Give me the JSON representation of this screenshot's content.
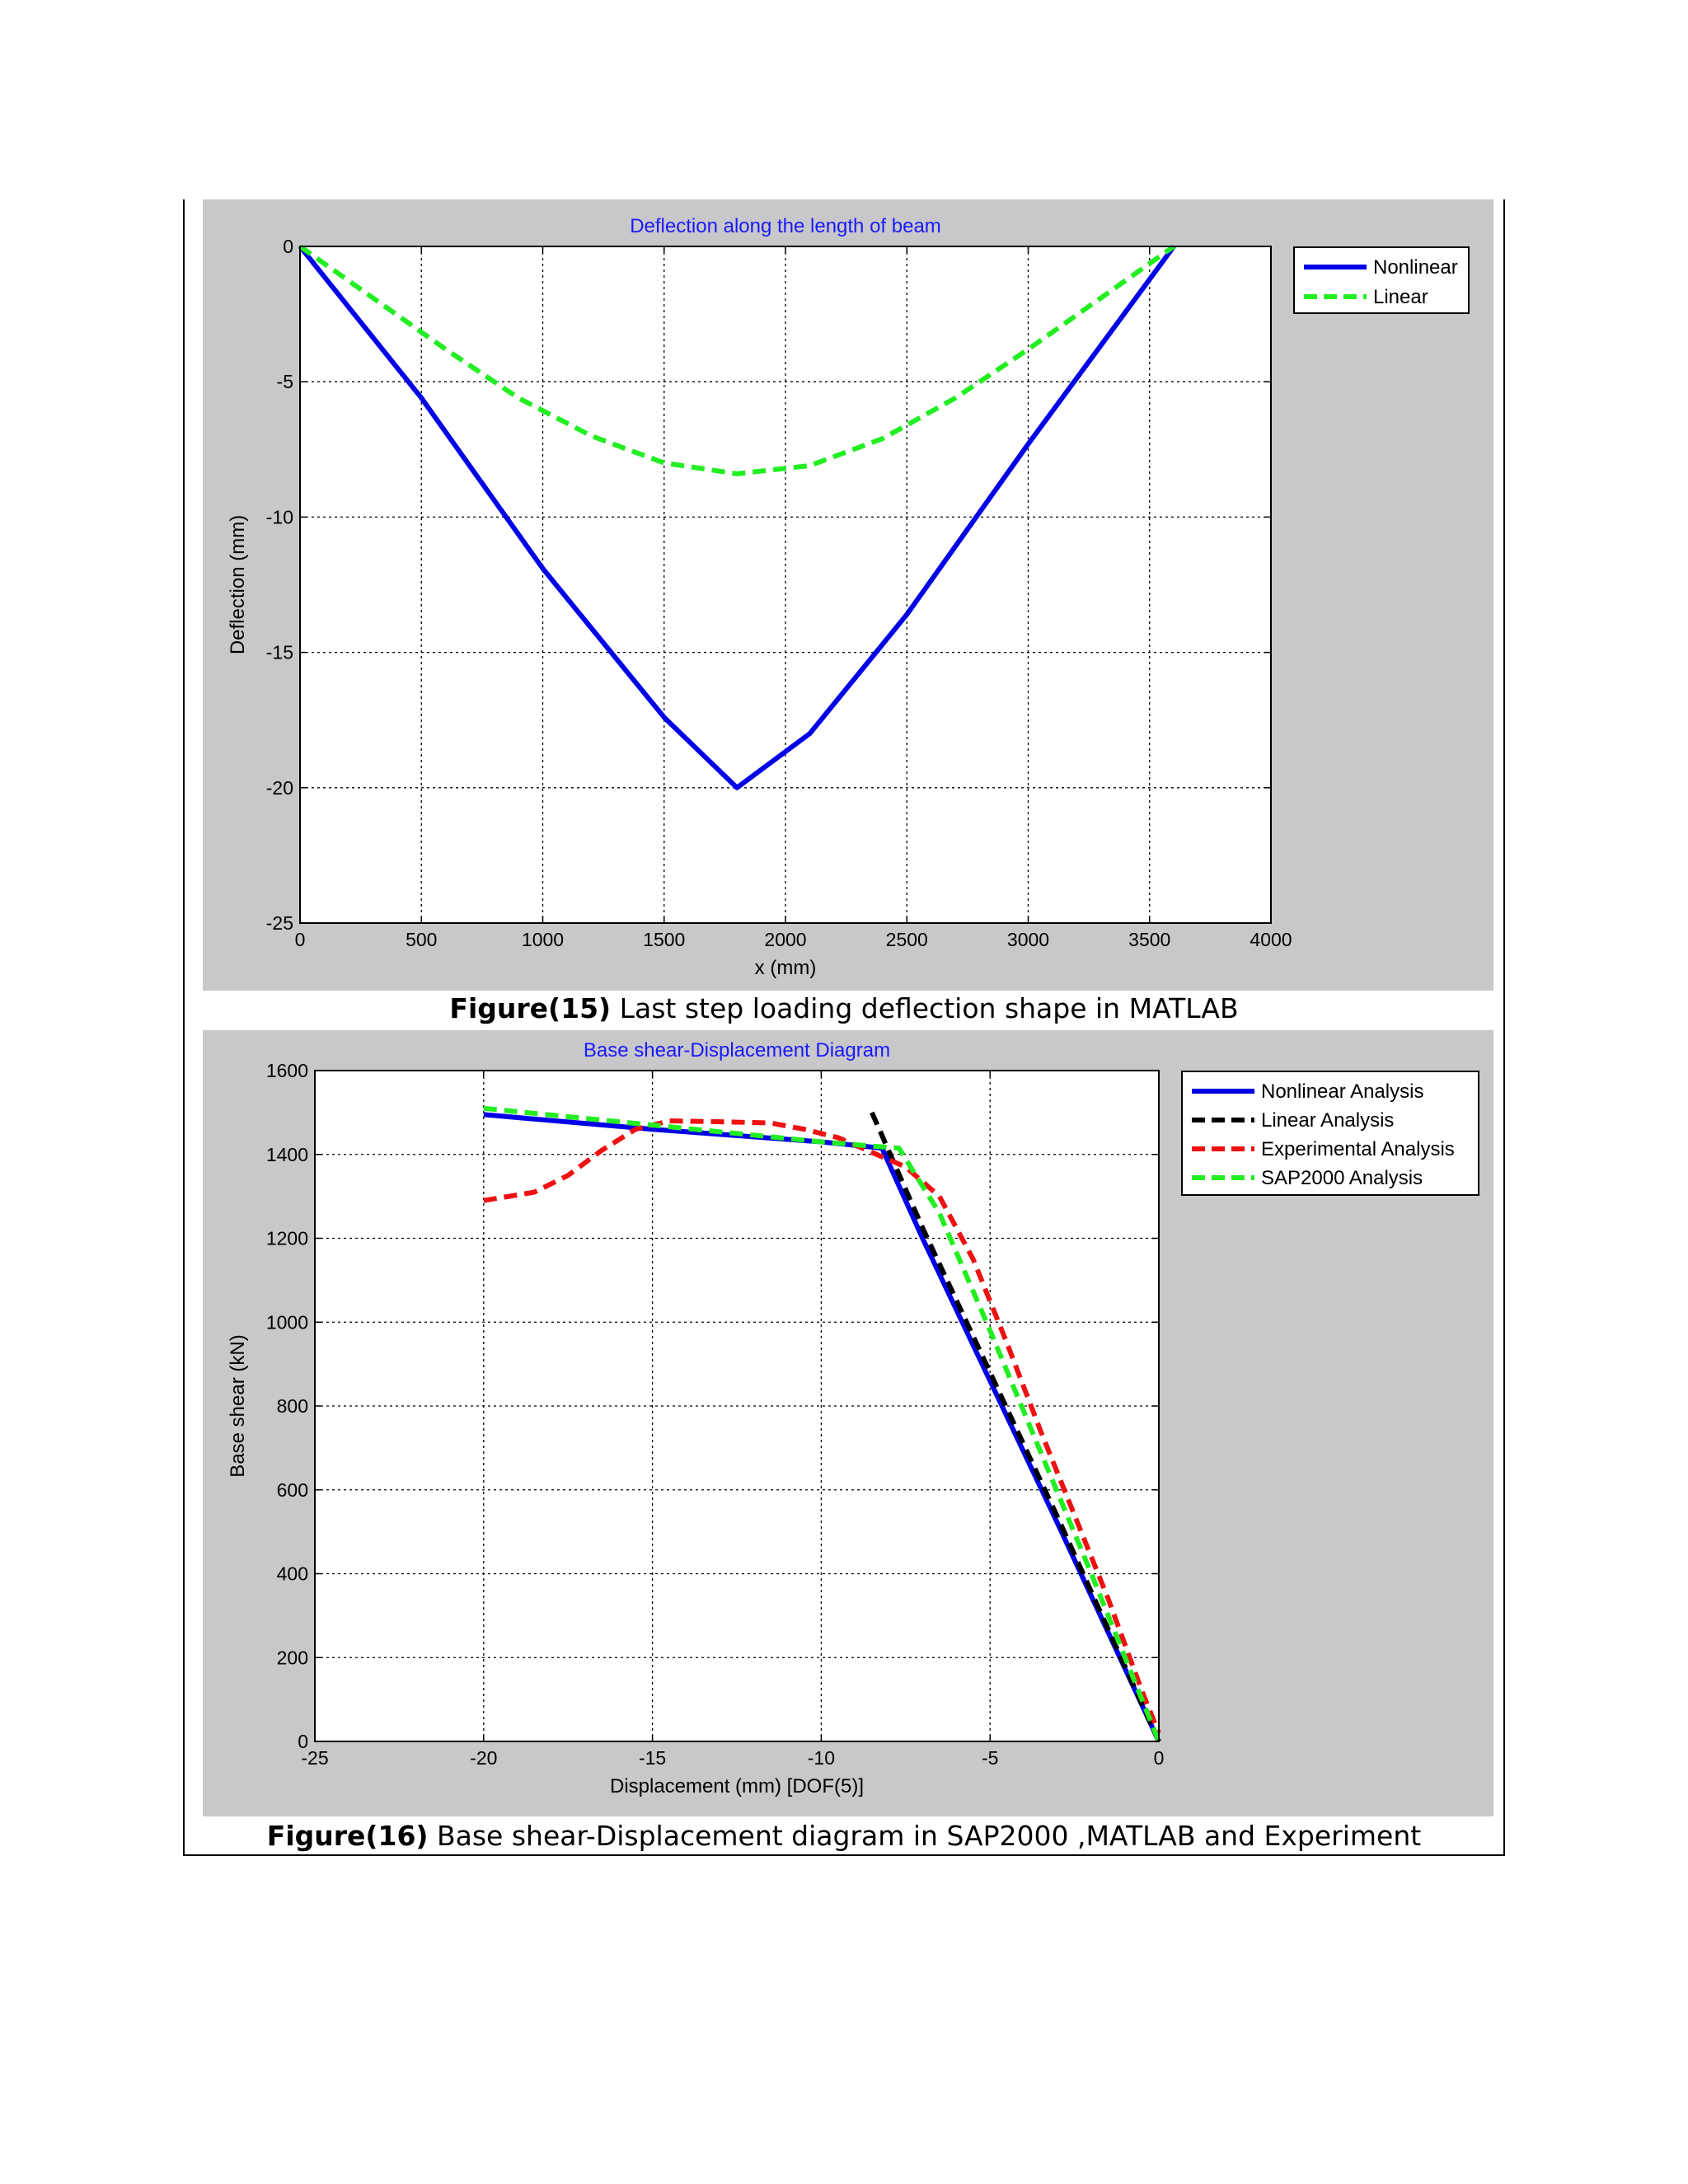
{
  "figures": [
    {
      "caption_bold": "Figure(15)",
      "caption_text": " Last step loading deflection shape in MATLAB"
    },
    {
      "caption_bold": "Figure(16)",
      "caption_text": " Base shear-Displacement diagram in SAP2000 ,MATLAB and Experiment"
    }
  ],
  "colors": {
    "panel_bg": "#c8c7c9",
    "title_blue": "#1a1aff",
    "nonlinear": "#0000e6",
    "linear_green": "#22ee22",
    "linear_black": "#000000",
    "experimental": "#ee1111"
  },
  "chart_data": [
    {
      "type": "line",
      "title": "Deflection along the length of beam",
      "xlabel": "x (mm)",
      "ylabel": "Deflection (mm)",
      "xlim": [
        0,
        4000
      ],
      "ylim": [
        -25,
        0
      ],
      "xticks": [
        0,
        500,
        1000,
        1500,
        2000,
        2500,
        3000,
        3500,
        4000
      ],
      "yticks": [
        0,
        -5,
        -10,
        -15,
        -20,
        -25
      ],
      "grid": true,
      "legend_position": "outside-top-right",
      "series": [
        {
          "name": "Nonlinear",
          "style": "solid",
          "color": "#0000e6",
          "x": [
            0,
            500,
            1000,
            1500,
            1800,
            2100,
            2500,
            3000,
            3600
          ],
          "y": [
            0,
            -5.6,
            -11.9,
            -17.4,
            -20.0,
            -18.0,
            -13.6,
            -7.3,
            0
          ]
        },
        {
          "name": "Linear",
          "style": "dashed",
          "color": "#22ee22",
          "x": [
            0,
            300,
            600,
            900,
            1200,
            1500,
            1800,
            2100,
            2400,
            2700,
            3000,
            3300,
            3600
          ],
          "y": [
            0,
            -1.9,
            -3.8,
            -5.6,
            -7.0,
            -8.0,
            -8.4,
            -8.1,
            -7.1,
            -5.6,
            -3.8,
            -1.9,
            0
          ]
        }
      ]
    },
    {
      "type": "line",
      "title": "Base shear-Displacement Diagram",
      "xlabel": "Displacement (mm) [DOF(5)]",
      "ylabel": "Base shear (kN)",
      "xlim": [
        -25,
        0
      ],
      "ylim": [
        0,
        1600
      ],
      "xticks": [
        -25,
        -20,
        -15,
        -10,
        -5,
        0
      ],
      "yticks": [
        0,
        200,
        400,
        600,
        800,
        1000,
        1200,
        1400,
        1600
      ],
      "grid": true,
      "legend_position": "outside-top-right",
      "series": [
        {
          "name": "Nonlinear Analysis",
          "style": "solid",
          "color": "#0000e6",
          "x": [
            -20,
            -15,
            -10,
            -8.2,
            -7.0,
            -5.0,
            -3.0,
            0
          ],
          "y": [
            1495,
            1460,
            1430,
            1415,
            1200,
            860,
            520,
            0
          ]
        },
        {
          "name": "Linear Analysis",
          "style": "dashed",
          "color": "#000000",
          "x": [
            -8.5,
            -7.0,
            -5.0,
            -3.0,
            0
          ],
          "y": [
            1500,
            1225,
            880,
            535,
            0
          ]
        },
        {
          "name": "Experimental Analysis",
          "style": "dashed",
          "color": "#ee1111",
          "x": [
            -20,
            -18.5,
            -17.5,
            -16.5,
            -15.5,
            -14.5,
            -13,
            -11.5,
            -10.5,
            -9.5,
            -8.5,
            -7.5,
            -6.5,
            -5.5,
            -4.5,
            -3.5,
            -2.5,
            -1.5,
            -0.5,
            0
          ],
          "y": [
            1290,
            1310,
            1350,
            1410,
            1460,
            1480,
            1478,
            1475,
            1460,
            1440,
            1405,
            1370,
            1300,
            1150,
            950,
            740,
            540,
            340,
            120,
            20
          ]
        },
        {
          "name": "SAP2000 Analysis",
          "style": "dashed",
          "color": "#22ee22",
          "x": [
            -20,
            -17.5,
            -15,
            -12.5,
            -10,
            -8.5,
            -7.7,
            -6.5,
            -5.0,
            -3.5,
            -2.0,
            -0.5,
            0
          ],
          "y": [
            1510,
            1490,
            1470,
            1450,
            1430,
            1420,
            1415,
            1260,
            980,
            690,
            400,
            100,
            0
          ]
        }
      ]
    }
  ]
}
